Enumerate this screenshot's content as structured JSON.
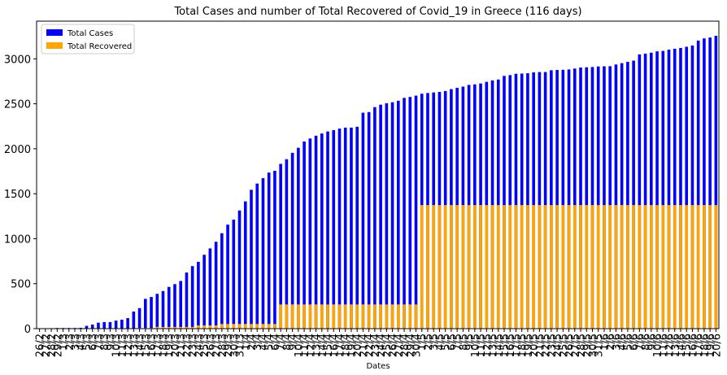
{
  "chart_data": {
    "type": "bar",
    "title": "Total Cases and number of Total Recovered of Covid_19 in Greece (116 days)",
    "x_label": "Dates",
    "categories": [
      "26/2",
      "27/2",
      "28/2",
      "29/2",
      "1/3",
      "2/3",
      "3/3",
      "4/3",
      "5/3",
      "6/3",
      "7/3",
      "8/3",
      "9/3",
      "10/3",
      "11/3",
      "12/3",
      "13/3",
      "14/3",
      "15/3",
      "16/3",
      "17/3",
      "18/3",
      "19/3",
      "20/3",
      "21/3",
      "22/3",
      "23/3",
      "24/3",
      "25/3",
      "26/3",
      "27/3",
      "28/3",
      "29/3",
      "30/3",
      "31/3",
      "1/4",
      "2/4",
      "3/4",
      "4/4",
      "5/4",
      "6/4",
      "7/4",
      "8/4",
      "9/4",
      "10/4",
      "11/4",
      "12/4",
      "13/4",
      "14/4",
      "15/4",
      "16/4",
      "17/4",
      "18/4",
      "19/4",
      "20/4",
      "21/4",
      "22/4",
      "23/4",
      "24/4",
      "25/4",
      "26/4",
      "27/4",
      "28/4",
      "29/4",
      "30/4",
      "1/5",
      "2/5",
      "3/5",
      "4/5",
      "5/5",
      "6/5",
      "7/5",
      "8/5",
      "9/5",
      "10/5",
      "11/5",
      "12/5",
      "13/5",
      "14/5",
      "15/5",
      "16/5",
      "17/5",
      "18/5",
      "19/5",
      "20/5",
      "21/5",
      "22/5",
      "23/5",
      "24/5",
      "25/5",
      "26/5",
      "27/5",
      "28/5",
      "29/5",
      "30/5",
      "31/5",
      "1/6",
      "2/6",
      "3/6",
      "4/6",
      "5/6",
      "6/6",
      "7/6",
      "8/6",
      "9/6",
      "10/6",
      "11/6",
      "12/6",
      "13/6",
      "14/6",
      "15/6",
      "16/6",
      "17/6",
      "18/6",
      "19/6",
      "20/6"
    ],
    "series": [
      {
        "name": "Total Cases",
        "color": "#0000ff",
        "values": [
          1,
          3,
          3,
          7,
          7,
          7,
          7,
          9,
          31,
          45,
          66,
          73,
          73,
          89,
          99,
          117,
          190,
          228,
          331,
          352,
          387,
          418,
          464,
          495,
          530,
          624,
          695,
          743,
          821,
          892,
          966,
          1061,
          1156,
          1212,
          1314,
          1415,
          1544,
          1613,
          1673,
          1735,
          1755,
          1832,
          1884,
          1955,
          2011,
          2081,
          2114,
          2145,
          2170,
          2192,
          2207,
          2224,
          2235,
          2235,
          2245,
          2401,
          2408,
          2463,
          2490,
          2506,
          2517,
          2534,
          2566,
          2576,
          2591,
          2612,
          2620,
          2626,
          2632,
          2642,
          2663,
          2678,
          2691,
          2710,
          2716,
          2726,
          2744,
          2760,
          2770,
          2810,
          2819,
          2834,
          2836,
          2840,
          2850,
          2853,
          2853,
          2873,
          2876,
          2878,
          2882,
          2892,
          2903,
          2906,
          2909,
          2915,
          2917,
          2918,
          2937,
          2952,
          2967,
          2980,
          3049,
          3058,
          3068,
          3083,
          3088,
          3102,
          3112,
          3121,
          3134,
          3148,
          3203,
          3227,
          3237,
          3256
        ]
      },
      {
        "name": "Total Recovered",
        "color": "#ffa500",
        "values": [
          0,
          0,
          0,
          0,
          0,
          0,
          0,
          0,
          0,
          0,
          0,
          0,
          0,
          0,
          0,
          0,
          0,
          8,
          8,
          8,
          19,
          19,
          19,
          19,
          19,
          19,
          19,
          36,
          36,
          36,
          36,
          52,
          52,
          52,
          52,
          52,
          52,
          52,
          52,
          52,
          52,
          269,
          269,
          269,
          269,
          269,
          269,
          269,
          269,
          269,
          269,
          269,
          269,
          269,
          269,
          269,
          269,
          269,
          269,
          269,
          269,
          269,
          269,
          269,
          269,
          1374,
          1374,
          1374,
          1374,
          1374,
          1374,
          1374,
          1374,
          1374,
          1374,
          1374,
          1374,
          1374,
          1374,
          1374,
          1374,
          1374,
          1374,
          1374,
          1374,
          1374,
          1374,
          1374,
          1374,
          1374,
          1374,
          1374,
          1374,
          1374,
          1374,
          1374,
          1374,
          1374,
          1374,
          1374,
          1374,
          1374,
          1374,
          1374,
          1374,
          1374,
          1374,
          1374,
          1374,
          1374,
          1374,
          1374,
          1374,
          1374,
          1374,
          1374
        ]
      }
    ],
    "ylim": [
      0,
      3419
    ],
    "yticks": [
      0,
      500,
      1000,
      1500,
      2000,
      2500,
      3000
    ],
    "legend": "upper left"
  }
}
